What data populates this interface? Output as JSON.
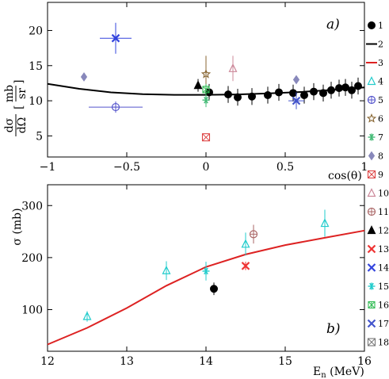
{
  "chart_data": [
    {
      "panel_label": "a)",
      "type": "scatter",
      "xlabel": "cos(θ)",
      "ylabel_main": "dσ",
      "ylabel_den": "dΩ",
      "ylabel_unit_num": "mb",
      "ylabel_unit_den": "sr",
      "xlim": [
        -1,
        1
      ],
      "ylim": [
        2,
        24
      ],
      "xticks": [
        -1,
        -0.5,
        0,
        0.5,
        1
      ],
      "xtick_labels": [
        "−1",
        "−0.5",
        "0",
        "0.5",
        "1"
      ],
      "yticks": [
        5,
        10,
        15,
        20
      ],
      "ytick_labels": [
        "5",
        "10",
        "15",
        "20"
      ],
      "series": [
        {
          "name": "1",
          "marker": "filled-circle",
          "color": "#000000",
          "points": [
            {
              "x": 0.02,
              "y": 11.2,
              "yerr": 1.2
            },
            {
              "x": 0.14,
              "y": 10.9,
              "yerr": 1.2
            },
            {
              "x": 0.2,
              "y": 10.5,
              "yerr": 1.2
            },
            {
              "x": 0.29,
              "y": 10.6,
              "yerr": 1.2
            },
            {
              "x": 0.39,
              "y": 10.8,
              "yerr": 1.2
            },
            {
              "x": 0.46,
              "y": 11.2,
              "yerr": 1.2
            },
            {
              "x": 0.55,
              "y": 11.1,
              "yerr": 1.2
            },
            {
              "x": 0.62,
              "y": 10.8,
              "yerr": 1.2
            },
            {
              "x": 0.68,
              "y": 11.3,
              "yerr": 1.2
            },
            {
              "x": 0.74,
              "y": 11.1,
              "yerr": 1.2
            },
            {
              "x": 0.79,
              "y": 11.5,
              "yerr": 1.2
            },
            {
              "x": 0.84,
              "y": 11.8,
              "yerr": 1.2
            },
            {
              "x": 0.88,
              "y": 11.9,
              "yerr": 1.2
            },
            {
              "x": 0.92,
              "y": 11.5,
              "yerr": 1.2
            },
            {
              "x": 0.96,
              "y": 12.1,
              "yerr": 1.2
            }
          ]
        },
        {
          "name": "2",
          "marker": "line",
          "color": "#000000",
          "curve": [
            [
              -1,
              12.4
            ],
            [
              -0.8,
              11.7
            ],
            [
              -0.6,
              11.2
            ],
            [
              -0.4,
              10.95
            ],
            [
              -0.2,
              10.85
            ],
            [
              0,
              10.85
            ],
            [
              0.2,
              10.9
            ],
            [
              0.4,
              11.05
            ],
            [
              0.6,
              11.25
            ],
            [
              0.8,
              11.55
            ],
            [
              1,
              11.9
            ]
          ]
        },
        {
          "name": "3",
          "marker": "line",
          "color": "#dd2222",
          "points": []
        },
        {
          "name": "4",
          "marker": "open-triangle",
          "color": "#22cccc",
          "points": []
        },
        {
          "name": "5",
          "marker": "circle-plus",
          "color": "#5555cc",
          "points": [
            {
              "x": -0.57,
              "y": 9.1,
              "yerr": 0.8,
              "xerr": 0.17
            }
          ]
        },
        {
          "name": "6",
          "marker": "open-star",
          "color": "#886633",
          "points": [
            {
              "x": 0.0,
              "y": 13.8,
              "yerr": 2.6
            }
          ]
        },
        {
          "name": "7",
          "marker": "asterisk",
          "color": "#44bb77",
          "points": [
            {
              "x": 0.0,
              "y": 10.1,
              "yerr": 1.0
            }
          ]
        },
        {
          "name": "8",
          "marker": "diamond",
          "color": "#8888bb",
          "points": [
            {
              "x": -0.77,
              "y": 13.4
            },
            {
              "x": 0.57,
              "y": 13.0
            }
          ]
        },
        {
          "name": "9",
          "marker": "box-x",
          "color": "#dd4444",
          "points": [
            {
              "x": 0.0,
              "y": 4.8
            }
          ]
        },
        {
          "name": "10",
          "marker": "open-triangle",
          "color": "#cc8899",
          "points": [
            {
              "x": 0.17,
              "y": 14.6,
              "yerr": 1.8
            }
          ]
        },
        {
          "name": "11",
          "marker": "circle-plus",
          "color": "#aa6666",
          "points": []
        },
        {
          "name": "12",
          "marker": "filled-triangle",
          "color": "#000000",
          "points": [
            {
              "x": -0.05,
              "y": 12.2,
              "yerr": 0.9
            }
          ]
        },
        {
          "name": "13",
          "marker": "x-cross",
          "color": "#ee3333",
          "points": []
        },
        {
          "name": "14",
          "marker": "x-cross",
          "color": "#3344dd",
          "points": [
            {
              "x": -0.57,
              "y": 18.9,
              "yerr": 2.2,
              "xerr": 0.1
            }
          ]
        },
        {
          "name": "15",
          "marker": "star",
          "color": "#22cccc",
          "points": []
        },
        {
          "name": "16",
          "marker": "boxed-asterisk",
          "color": "#33bb55",
          "points": [
            {
              "x": 0.0,
              "y": 11.6,
              "yerr": 0.8
            }
          ]
        },
        {
          "name": "17",
          "marker": "x-cross",
          "color": "#4455cc",
          "points": [
            {
              "x": 0.57,
              "y": 10.0,
              "yerr": 1.2,
              "xerr": 0.05
            }
          ]
        },
        {
          "name": "18",
          "marker": "boxed-x",
          "color": "#777777",
          "points": []
        }
      ]
    },
    {
      "panel_label": "b)",
      "type": "scatter",
      "xlabel": "E",
      "xlabel_sub": "n",
      "xlabel_unit": " (MeV)",
      "ylabel": "σ (mb)",
      "xlim": [
        12,
        16
      ],
      "ylim": [
        20,
        340
      ],
      "xticks": [
        12,
        13,
        14,
        15,
        16
      ],
      "xtick_labels": [
        "12",
        "13",
        "14",
        "15",
        "16"
      ],
      "yticks": [
        100,
        200,
        300
      ],
      "ytick_labels": [
        "100",
        "200",
        "300"
      ],
      "series": [
        {
          "name": "3",
          "marker": "line",
          "color": "#dd2222",
          "curve": [
            [
              12,
              33
            ],
            [
              12.5,
              65
            ],
            [
              13,
              103
            ],
            [
              13.5,
              146
            ],
            [
              14,
              182
            ],
            [
              14.5,
              206
            ],
            [
              15,
              224
            ],
            [
              15.5,
              238
            ],
            [
              16,
              252
            ]
          ]
        },
        {
          "name": "4",
          "marker": "open-triangle",
          "color": "#22cccc",
          "points": [
            {
              "x": 12.5,
              "y": 87,
              "yerr": 10
            },
            {
              "x": 13.5,
              "y": 175,
              "yerr": 18
            },
            {
              "x": 14.5,
              "y": 226,
              "yerr": 22
            },
            {
              "x": 15.5,
              "y": 266,
              "yerr": 26
            }
          ]
        },
        {
          "name": "15",
          "marker": "star",
          "color": "#22cccc",
          "points": [
            {
              "x": 14.0,
              "y": 174,
              "yerr": 18
            }
          ]
        },
        {
          "name": "1",
          "marker": "filled-circle",
          "color": "#000000",
          "points": [
            {
              "x": 14.1,
              "y": 140,
              "yerr": 12
            }
          ]
        },
        {
          "name": "13",
          "marker": "x-cross",
          "color": "#ee3333",
          "points": [
            {
              "x": 14.5,
              "y": 184,
              "yerr": 8
            }
          ]
        },
        {
          "name": "11",
          "marker": "circle-plus",
          "color": "#aa6666",
          "points": [
            {
              "x": 14.6,
              "y": 245,
              "yerr": 18
            }
          ]
        }
      ]
    }
  ]
}
